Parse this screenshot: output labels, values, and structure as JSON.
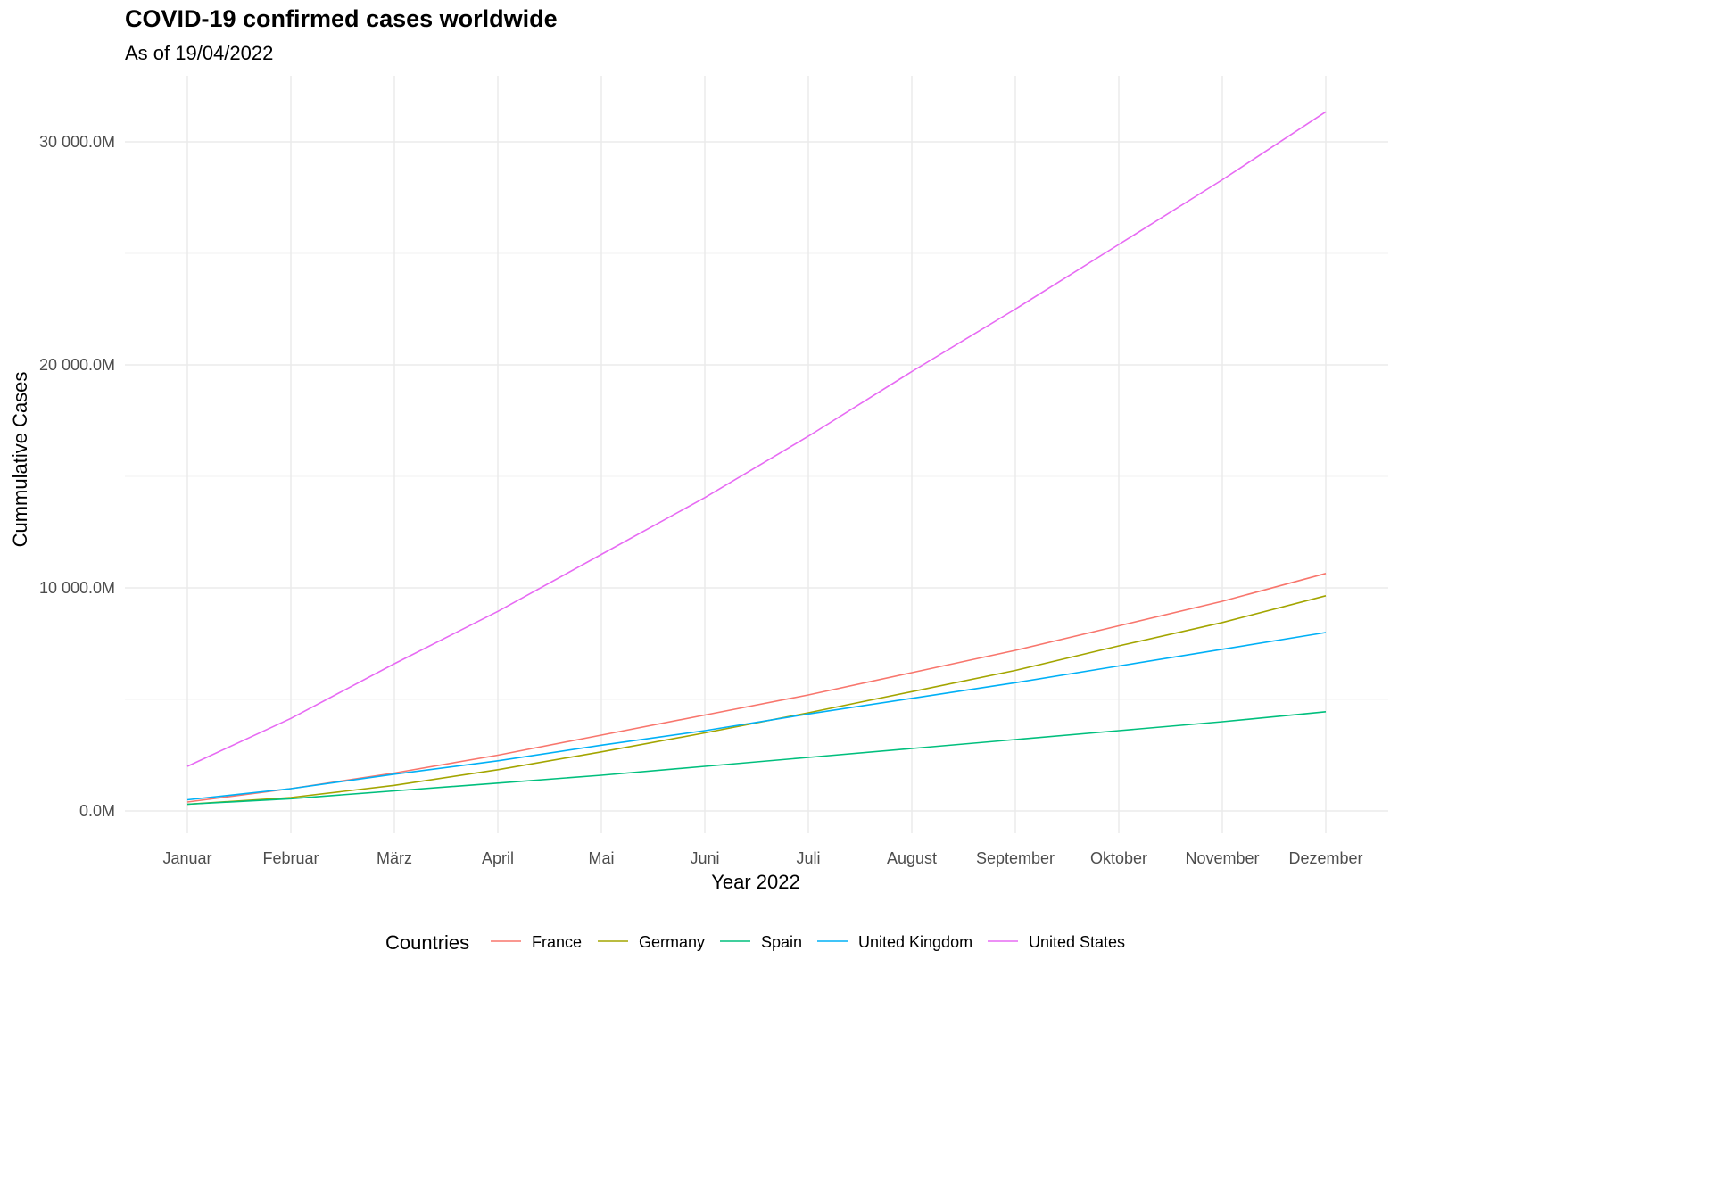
{
  "chart_data": {
    "type": "line",
    "title": "COVID-19 confirmed cases worldwide",
    "subtitle": "As of 19/04/2022",
    "xlabel": "Year 2022",
    "ylabel": "Cummulative Cases",
    "categories": [
      "Januar",
      "Februar",
      "März",
      "April",
      "Mai",
      "Juni",
      "Juli",
      "August",
      "September",
      "Oktober",
      "November",
      "Dezember"
    ],
    "y_ticks": [
      0,
      10000,
      20000,
      30000
    ],
    "y_tick_labels": [
      "0.0M",
      "10 000.0M",
      "20 000.0M",
      "30 000.0M"
    ],
    "ylim": [
      -1000,
      33000
    ],
    "grid": true,
    "legend": {
      "title": "Countries",
      "position": "bottom"
    },
    "series": [
      {
        "name": "France",
        "color": "#F8766D",
        "values": [
          400,
          1000,
          1700,
          2500,
          3400,
          4300,
          5200,
          6200,
          7200,
          8300,
          9400,
          10650
        ]
      },
      {
        "name": "Germany",
        "color": "#A3A500",
        "values": [
          300,
          600,
          1150,
          1850,
          2650,
          3500,
          4400,
          5350,
          6300,
          7400,
          8450,
          9650
        ]
      },
      {
        "name": "Spain",
        "color": "#00BF7D",
        "values": [
          300,
          550,
          900,
          1250,
          1600,
          2000,
          2400,
          2800,
          3200,
          3600,
          4000,
          4450
        ]
      },
      {
        "name": "United Kingdom",
        "color": "#00B0F6",
        "values": [
          500,
          1000,
          1650,
          2250,
          2950,
          3600,
          4350,
          5050,
          5750,
          6500,
          7250,
          8000
        ]
      },
      {
        "name": "United States",
        "color": "#E76BF3",
        "values": [
          2000,
          4150,
          6600,
          8950,
          11500,
          14050,
          16800,
          19700,
          22500,
          25400,
          28300,
          31350
        ]
      }
    ]
  }
}
